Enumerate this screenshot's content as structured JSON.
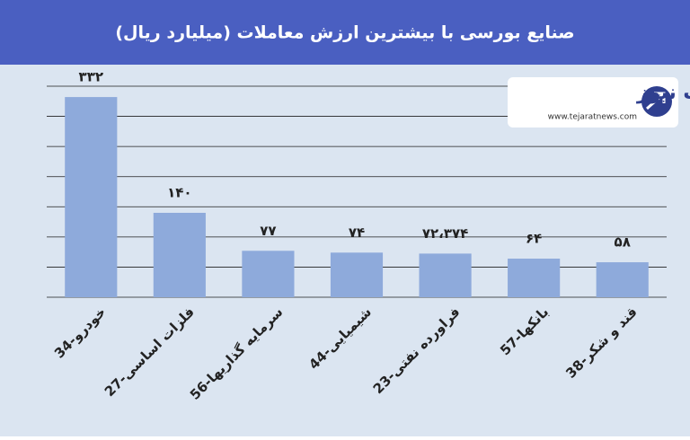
{
  "chart_data": {
    "type": "bar",
    "title": "صنایع بورسی با بیشترین ارزش معاملات  (میلیارد ریال)",
    "categories": [
      "34-خودرو",
      "27-فلزات اساسی",
      "56-سرمایه گذاریها",
      "44-شیمیایی",
      "23-فراورده نفتی",
      "57-بانکها",
      "38-قند و شکر"
    ],
    "values": [
      332,
      140,
      77,
      74,
      72.374,
      64,
      58
    ],
    "value_labels": [
      "۳۳۲",
      "۱۴۰",
      "۷۷",
      "۷۴",
      "۷۲،۳۷۴",
      "۶۴",
      "۵۸"
    ],
    "color": "#8eaadb",
    "ylim": [
      0,
      350
    ],
    "yticks": [
      0,
      50,
      100,
      150,
      200,
      250,
      300,
      350
    ],
    "grid": true
  },
  "logo": {
    "name": "تجارت نیوز",
    "url": "www.tejaratnews.com"
  }
}
